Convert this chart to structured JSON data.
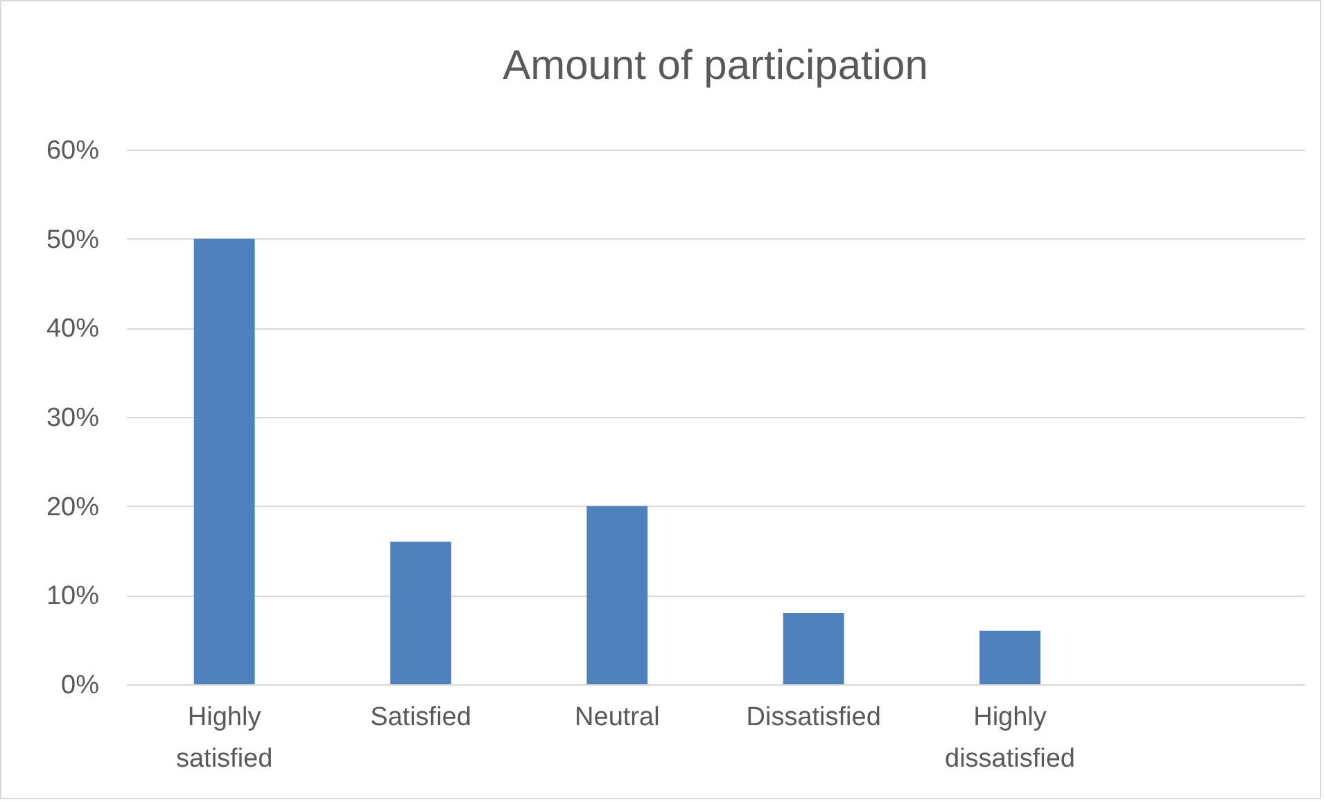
{
  "chart_data": {
    "type": "bar",
    "title": "Amount of participation",
    "categories": [
      "Highly satisfied",
      "Satisfied",
      "Neutral",
      "Dissatisfied",
      "Highly dissatisfied",
      null
    ],
    "values": [
      50,
      16,
      20,
      8,
      6,
      null
    ],
    "color": "#4f81bd",
    "ylim": [
      0,
      60
    ],
    "yticks": [
      {
        "value": 0,
        "label": "0%"
      },
      {
        "value": 10,
        "label": "10%"
      },
      {
        "value": 20,
        "label": "20%"
      },
      {
        "value": 30,
        "label": "30%"
      },
      {
        "value": 40,
        "label": "40%"
      },
      {
        "value": 50,
        "label": "50%"
      },
      {
        "value": 60,
        "label": "60%"
      }
    ],
    "grid": "y"
  }
}
